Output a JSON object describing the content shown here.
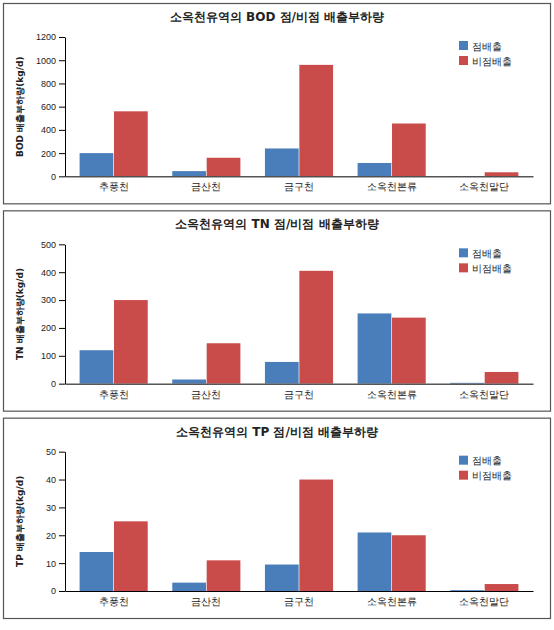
{
  "chart_data": [
    {
      "type": "bar",
      "title": "소옥천유역의 BOD 점/비점 배출부하량",
      "y_label": "BOD 배출부하량(kg/d)",
      "categories": [
        "추풍천",
        "금산천",
        "금구천",
        "소옥천본류",
        "소옥천말단"
      ],
      "series": [
        {
          "name": "점배출",
          "color": "#4a7ebb",
          "values": [
            200,
            45,
            240,
            115,
            3
          ]
        },
        {
          "name": "비점배출",
          "color": "#c94c4a",
          "values": [
            560,
            160,
            960,
            455,
            35
          ]
        }
      ],
      "ylim": [
        0,
        1200
      ],
      "yticks": [
        0,
        200,
        400,
        600,
        800,
        1000,
        1200
      ],
      "grid": false,
      "legend": "upper right"
    },
    {
      "type": "bar",
      "title": "소옥천유역의 TN 점/비점 배출부하량",
      "y_label": "TN 배출부하량(kg/d)",
      "categories": [
        "추풍천",
        "금산천",
        "금구천",
        "소옥천본류",
        "소옥천말단"
      ],
      "series": [
        {
          "name": "점배출",
          "color": "#4a7ebb",
          "values": [
            120,
            15,
            78,
            252,
            3
          ]
        },
        {
          "name": "비점배출",
          "color": "#c94c4a",
          "values": [
            300,
            145,
            405,
            237,
            42
          ]
        }
      ],
      "ylim": [
        0,
        500
      ],
      "yticks": [
        0,
        100,
        200,
        300,
        400,
        500
      ],
      "grid": false,
      "legend": "upper right"
    },
    {
      "type": "bar",
      "title": "소옥천유역의 TP 점/비점 배출부하량",
      "y_label": "TP 배출부하량(kg/d)",
      "categories": [
        "추풍천",
        "금산천",
        "금구천",
        "소옥천본류",
        "소옥천말단"
      ],
      "series": [
        {
          "name": "점배출",
          "color": "#4a7ebb",
          "values": [
            14,
            3,
            9.5,
            21,
            0.3
          ]
        },
        {
          "name": "비점배출",
          "color": "#c94c4a",
          "values": [
            25,
            11,
            40,
            20,
            2.5
          ]
        }
      ],
      "ylim": [
        0,
        50
      ],
      "yticks": [
        0,
        10,
        20,
        30,
        40,
        50
      ],
      "grid": false,
      "legend": "upper right"
    }
  ]
}
